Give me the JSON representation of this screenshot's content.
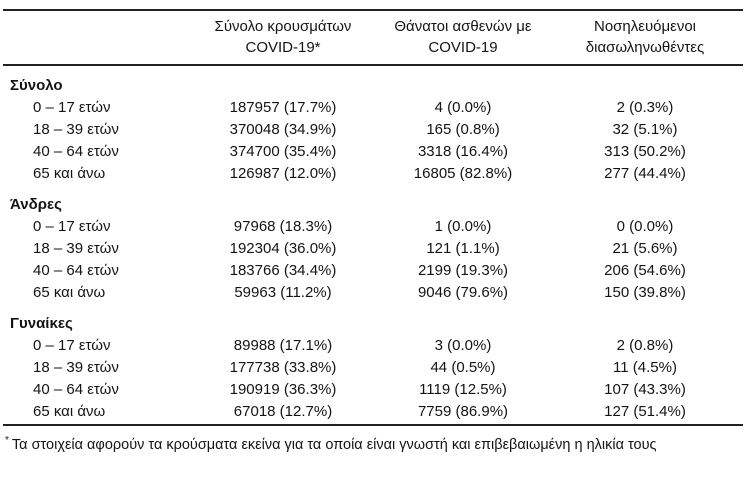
{
  "table": {
    "col_headers": [
      {
        "line1": "Σύνολο κρουσμάτων",
        "line2": "COVID-19*"
      },
      {
        "line1": "Θάνατοι ασθενών με",
        "line2": "COVID-19"
      },
      {
        "line1": "Νοσηλευόμενοι",
        "line2": "διασωληνωθέντες"
      }
    ],
    "groups": [
      {
        "label": "Σύνολο",
        "rows": [
          {
            "label": "0 – 17 ετών",
            "cases": "187957 (17.7%)",
            "deaths": "4 (0.0%)",
            "intubated": "2 (0.3%)"
          },
          {
            "label": "18 – 39 ετών",
            "cases": "370048 (34.9%)",
            "deaths": "165 (0.8%)",
            "intubated": "32 (5.1%)"
          },
          {
            "label": "40 – 64 ετών",
            "cases": "374700 (35.4%)",
            "deaths": "3318 (16.4%)",
            "intubated": "313 (50.2%)"
          },
          {
            "label": "65 και άνω",
            "cases": "126987 (12.0%)",
            "deaths": "16805 (82.8%)",
            "intubated": "277 (44.4%)"
          }
        ]
      },
      {
        "label": "Άνδρες",
        "rows": [
          {
            "label": "0 – 17 ετών",
            "cases": "97968 (18.3%)",
            "deaths": "1 (0.0%)",
            "intubated": "0 (0.0%)"
          },
          {
            "label": "18 – 39 ετών",
            "cases": "192304 (36.0%)",
            "deaths": "121 (1.1%)",
            "intubated": "21 (5.6%)"
          },
          {
            "label": "40 – 64 ετών",
            "cases": "183766 (34.4%)",
            "deaths": "2199 (19.3%)",
            "intubated": "206 (54.6%)"
          },
          {
            "label": "65 και άνω",
            "cases": "59963 (11.2%)",
            "deaths": "9046 (79.6%)",
            "intubated": "150 (39.8%)"
          }
        ]
      },
      {
        "label": "Γυναίκες",
        "rows": [
          {
            "label": "0 – 17 ετών",
            "cases": "89988 (17.1%)",
            "deaths": "3 (0.0%)",
            "intubated": "2 (0.8%)"
          },
          {
            "label": "18 – 39 ετών",
            "cases": "177738 (33.8%)",
            "deaths": "44 (0.5%)",
            "intubated": "11 (4.5%)"
          },
          {
            "label": "40 – 64 ετών",
            "cases": "190919 (36.3%)",
            "deaths": "1119 (12.5%)",
            "intubated": "107 (43.3%)"
          },
          {
            "label": "65 και άνω",
            "cases": "67018 (12.7%)",
            "deaths": "7759 (86.9%)",
            "intubated": "127 (51.4%)"
          }
        ]
      }
    ],
    "footnote_marker": "*",
    "footnote": "Τα στοιχεία αφορούν τα κρούσματα εκείνα για τα οποία είναι γνωστή και επιβεβαιωμένη η ηλικία τους"
  }
}
